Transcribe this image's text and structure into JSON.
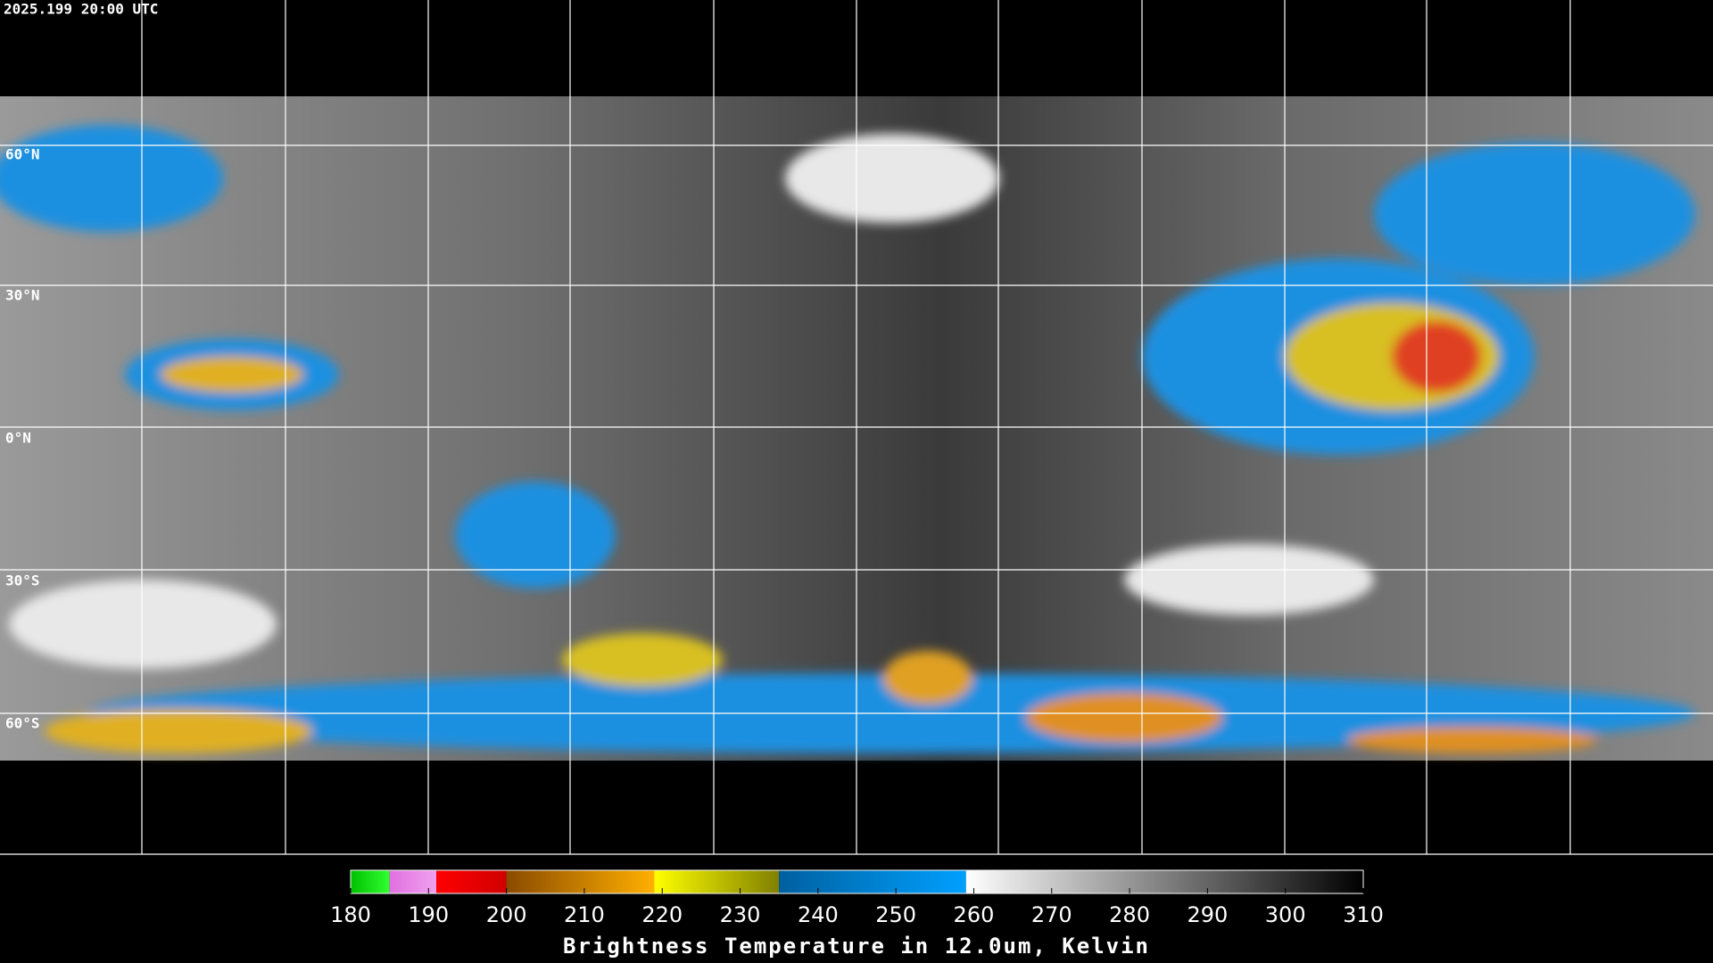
{
  "timestamp": "2025.199 20:00 UTC",
  "lat_labels": [
    "60°N",
    "30°N",
    "0°N",
    "30°S",
    "60°S"
  ],
  "colorbar": {
    "title": "Brightness Temperature in 12.0um, Kelvin",
    "range": [
      180,
      310
    ],
    "ticks": [
      180,
      190,
      200,
      210,
      220,
      230,
      240,
      250,
      260,
      270,
      280,
      290,
      300,
      310
    ],
    "segments": [
      {
        "from": 180,
        "to": 185,
        "colors": [
          "#00c000",
          "#30ff30"
        ]
      },
      {
        "from": 185,
        "to": 191,
        "colors": [
          "#e070e0",
          "#f0a0f0"
        ]
      },
      {
        "from": 191,
        "to": 200,
        "colors": [
          "#ff0000",
          "#d00000"
        ]
      },
      {
        "from": 200,
        "to": 219,
        "colors": [
          "#8a4a00",
          "#ffb000"
        ]
      },
      {
        "from": 219,
        "to": 235,
        "colors": [
          "#ffff00",
          "#808000"
        ]
      },
      {
        "from": 235,
        "to": 259,
        "colors": [
          "#0060a0",
          "#00a0ff"
        ]
      },
      {
        "from": 259,
        "to": 310,
        "colors": [
          "#ffffff",
          "#000000"
        ]
      }
    ]
  }
}
